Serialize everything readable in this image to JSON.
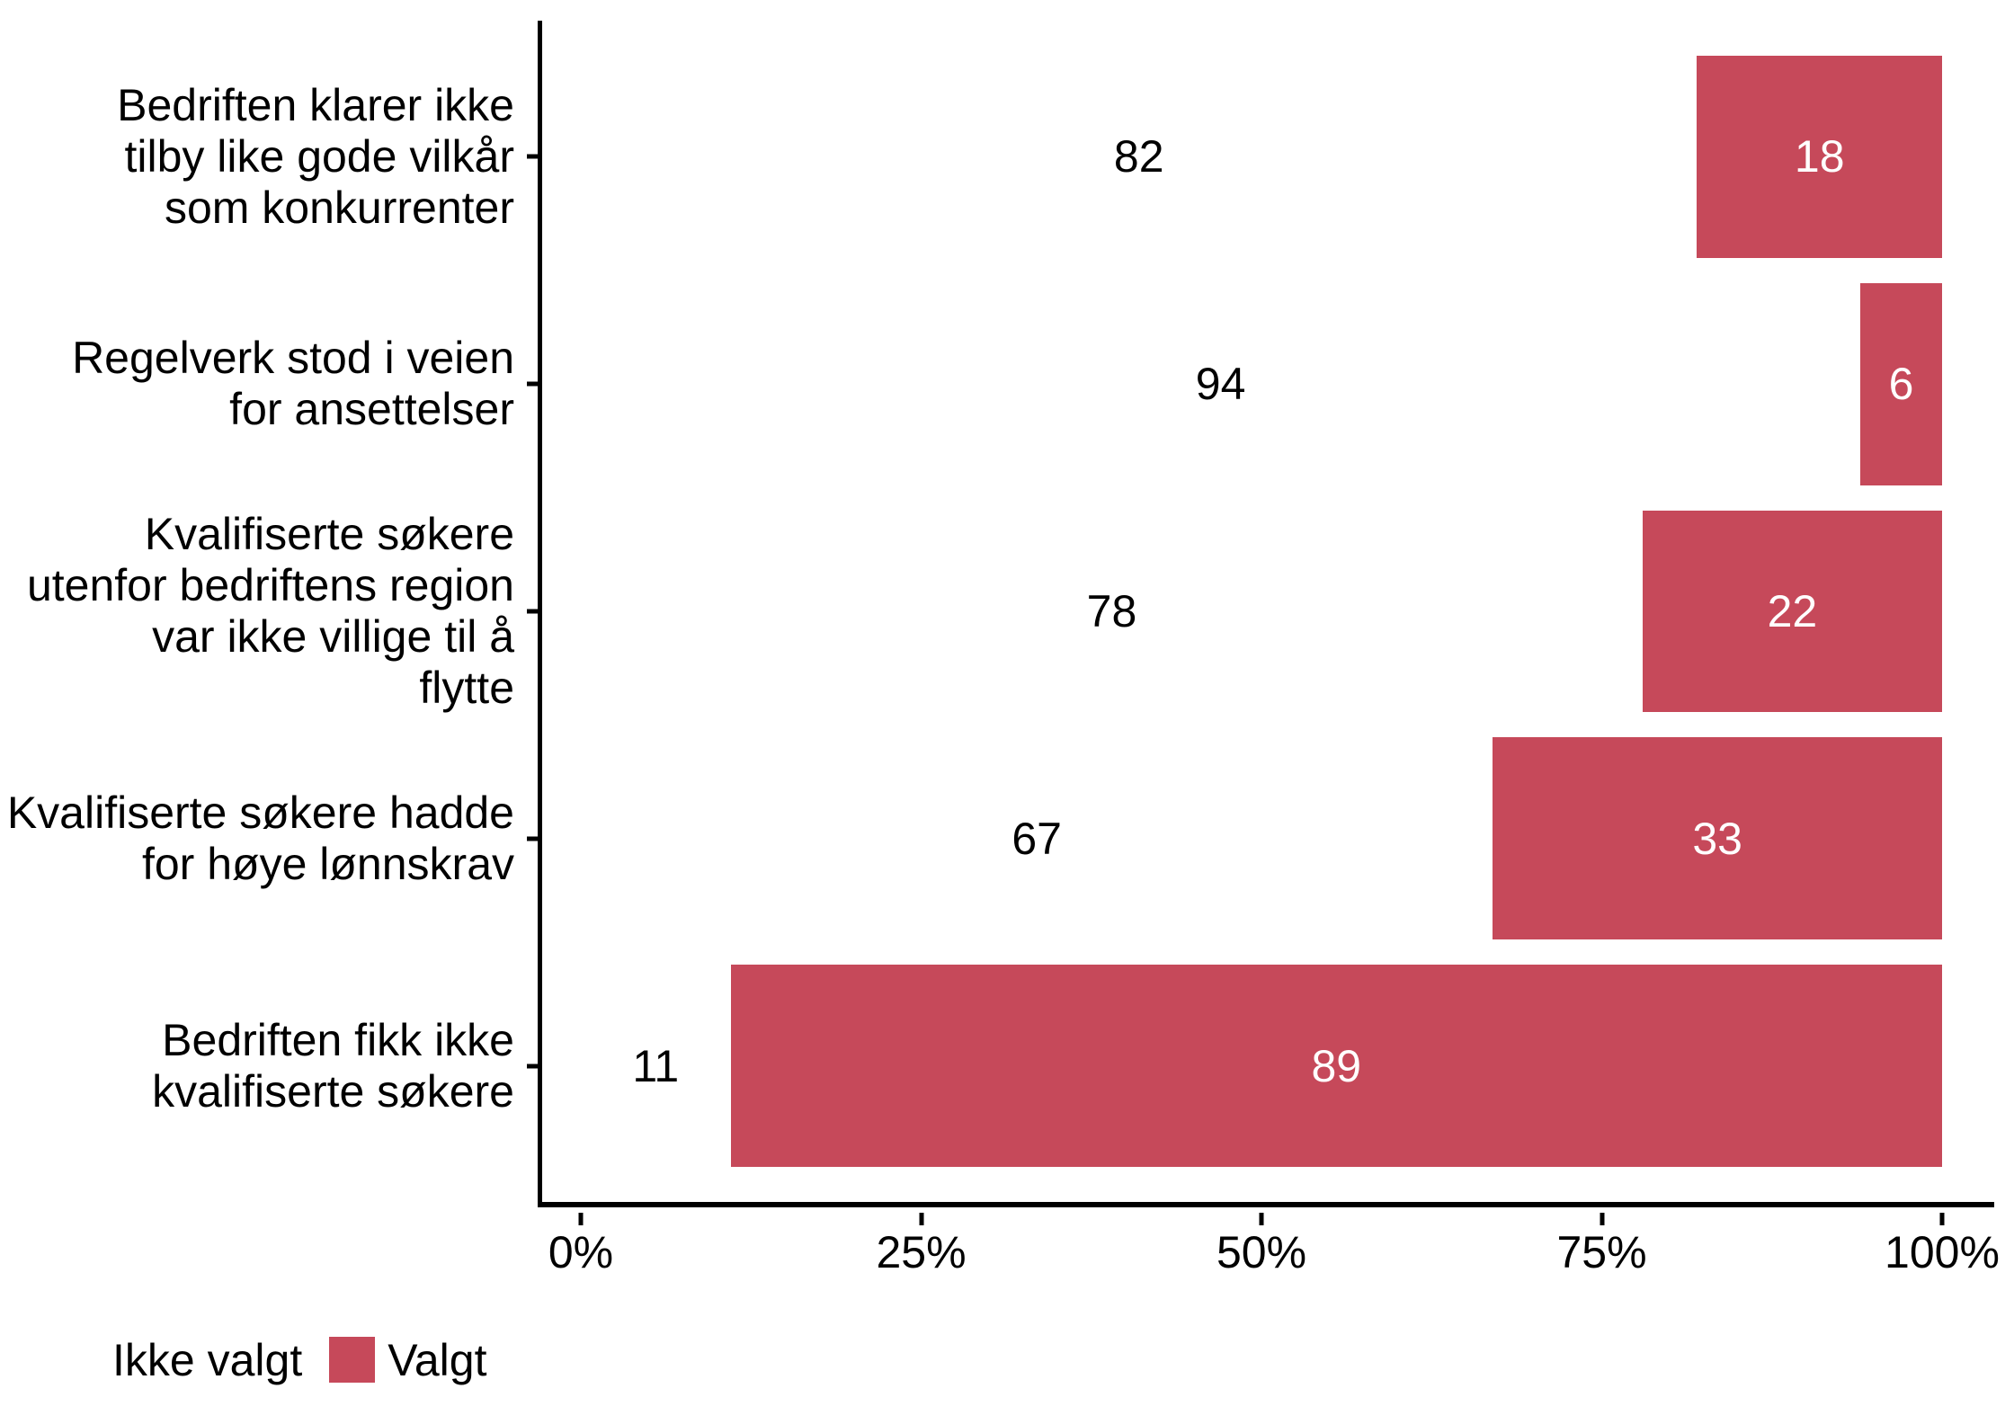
{
  "chart_data": {
    "type": "bar",
    "orientation": "horizontal",
    "stacked": true,
    "unit": "percent",
    "title": "",
    "xlabel": "",
    "ylabel": "",
    "categories": [
      "Bedriften klarer ikke\ntilby like gode vilkår\nsom konkurrenter",
      "Regelverk stod i veien\nfor ansettelser",
      "Kvalifiserte søkere\nutenfor bedriftens region\nvar ikke villige til å\nflytte",
      "Kvalifiserte søkere hadde\nfor høye lønnskrav",
      "Bedriften fikk ikke\nkvalifiserte søkere"
    ],
    "series": [
      {
        "name": "Ikke valgt",
        "values": [
          82,
          94,
          78,
          67,
          11
        ],
        "fill": "#FFFFFF",
        "label_color": "#000000"
      },
      {
        "name": "Valgt",
        "values": [
          18,
          6,
          22,
          33,
          89
        ],
        "fill": "#C6495A",
        "label_color": "#FFFFFF"
      }
    ],
    "x_axis": {
      "range": [
        0,
        100
      ],
      "tick_values": [
        0,
        25,
        50,
        75,
        100
      ],
      "tick_labels": [
        "0%",
        "25%",
        "50%",
        "75%",
        "100%"
      ]
    },
    "legend": {
      "position": "bottom-left",
      "items": [
        {
          "label": "Ikke valgt",
          "swatch": "#FFFFFF"
        },
        {
          "label": "Valgt",
          "swatch": "#C6495A"
        }
      ]
    },
    "grid": false,
    "axis_color": "#000000",
    "text_color": "#000000",
    "background_color": "#FFFFFF"
  }
}
